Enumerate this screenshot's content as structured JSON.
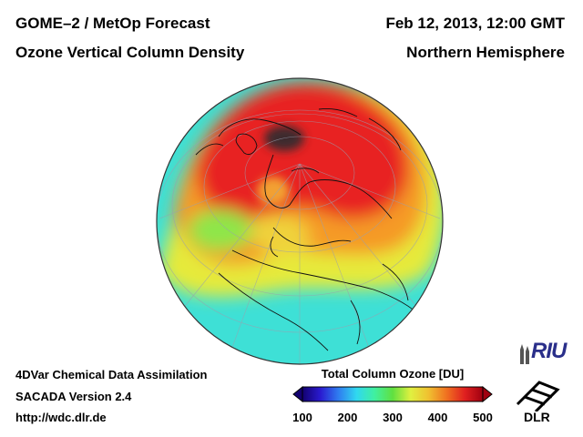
{
  "header": {
    "title_left_1": "GOME–2 / MetOp Forecast",
    "title_left_2": "Ozone Vertical Column Density",
    "title_right_1": "Feb 12, 2013, 12:00 GMT",
    "title_right_2": "Northern Hemisphere"
  },
  "footer": {
    "line1": "4DVar Chemical Data Assimilation",
    "line2": "SACADA Version 2.4",
    "line3": "http://wdc.dlr.de"
  },
  "colorbar": {
    "title": "Total Column Ozone [DU]",
    "ticks": [
      "100",
      "200",
      "300",
      "400",
      "500"
    ],
    "min": 100,
    "max": 500,
    "stops": [
      "#120070",
      "#2a1bd0",
      "#2f7df0",
      "#30d8f0",
      "#40f0a0",
      "#60e040",
      "#e0f040",
      "#f0c030",
      "#f07020",
      "#e02020",
      "#a00010"
    ]
  },
  "logos": {
    "riu": "RIU",
    "dlr": "DLR"
  },
  "map": {
    "projection": "orthographic",
    "hemisphere": "Northern Hemisphere",
    "quantity": "Total Column Ozone",
    "unit": "DU",
    "regions": [
      {
        "name": "arctic-peak",
        "value_du": 500,
        "color": "#3a2a2a"
      },
      {
        "name": "high-latitude-belt",
        "value_du": 460,
        "color": "#e62020"
      },
      {
        "name": "mid-latitude",
        "value_du": 390,
        "color": "#f07a20"
      },
      {
        "name": "subtropics",
        "value_du": 320,
        "color": "#e0e838"
      },
      {
        "name": "tropics",
        "value_du": 260,
        "color": "#40e0d0"
      }
    ]
  }
}
